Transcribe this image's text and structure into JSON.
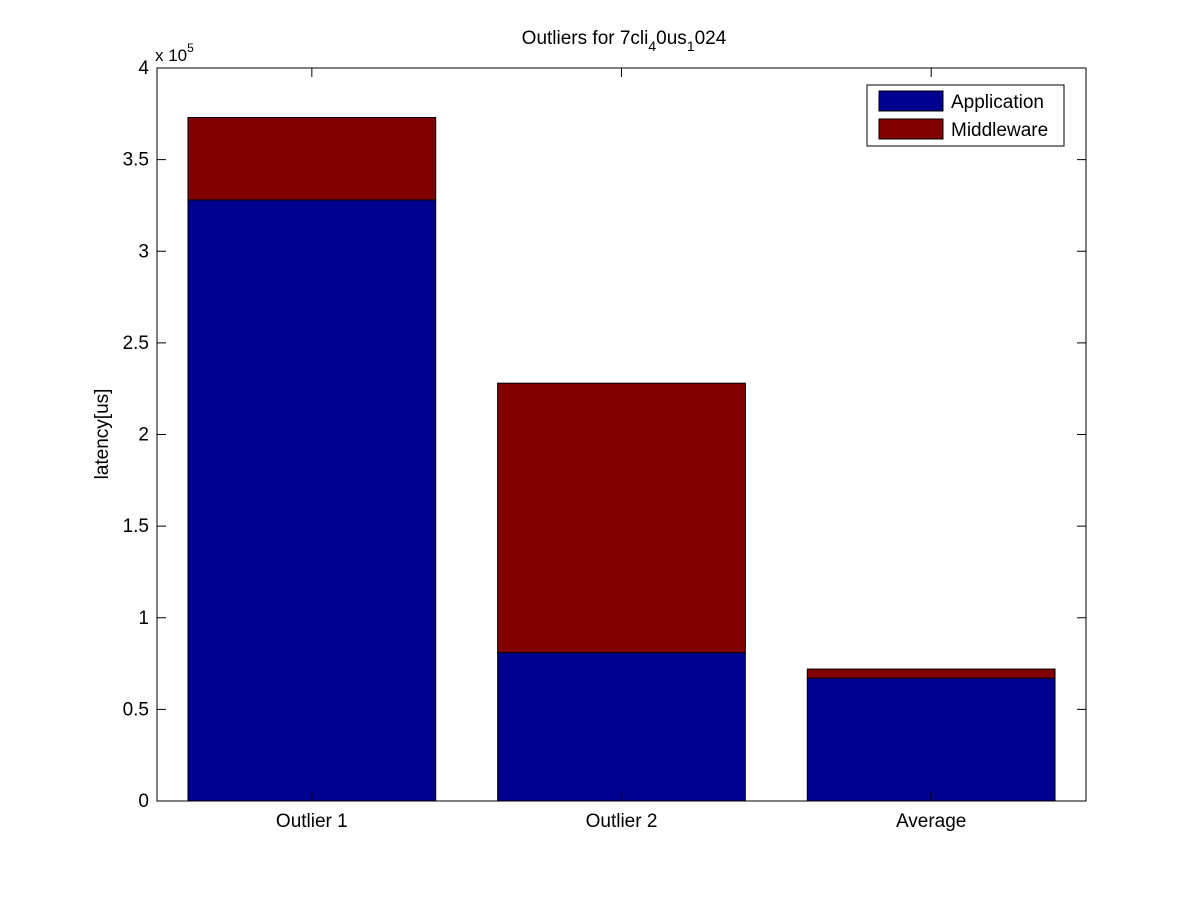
{
  "chart_data": {
    "type": "bar",
    "stacked": true,
    "title": {
      "main": "Outliers for 7cli",
      "sub1": "4",
      "mid": "0us",
      "sub2": "1",
      "tail": "024"
    },
    "xlabel": "",
    "ylabel": "latency[us]",
    "y_multiplier": {
      "prefix": "x 10",
      "exponent": "5"
    },
    "categories": [
      "Outlier 1",
      "Outlier 2",
      "Average"
    ],
    "series": [
      {
        "name": "Application",
        "color": "#00008F",
        "values": [
          328000,
          81000,
          67000
        ]
      },
      {
        "name": "Middleware",
        "color": "#800000",
        "values": [
          45000,
          147000,
          5000
        ]
      }
    ],
    "ylim": [
      0,
      400000
    ],
    "yticks": [
      0,
      50000,
      100000,
      150000,
      200000,
      250000,
      300000,
      350000,
      400000
    ],
    "ytick_labels": [
      "0",
      "0.5",
      "1",
      "1.5",
      "2",
      "2.5",
      "3",
      "3.5",
      "4"
    ],
    "legend_position": "top-right",
    "grid": false
  }
}
